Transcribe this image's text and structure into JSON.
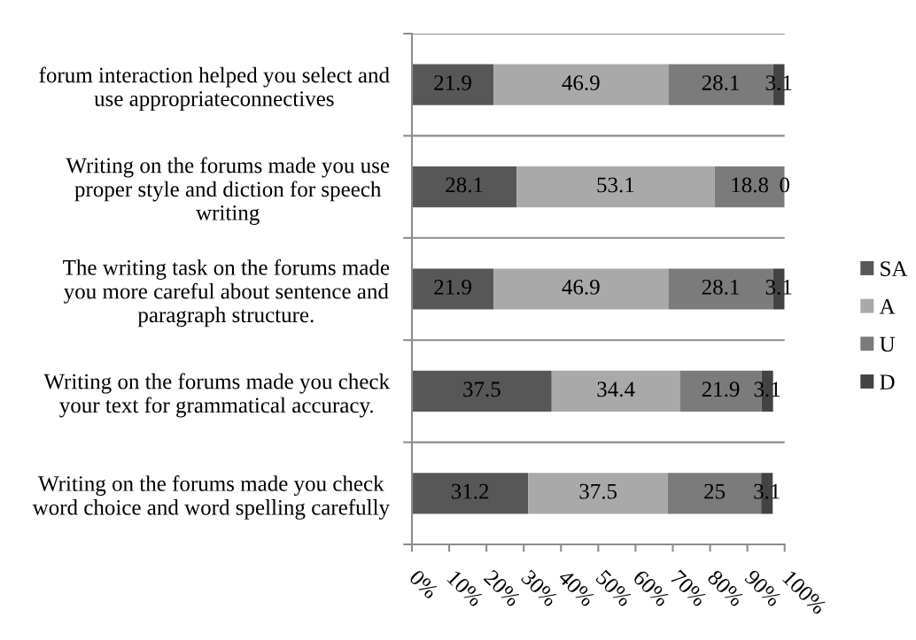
{
  "chart_data": {
    "type": "bar",
    "orientation": "horizontal",
    "stacked": true,
    "categories": [
      "forum interaction helped you select and\nuse appropriateconnectives",
      "Writing on the forums made you use\nproper style and diction for speech\nwriting",
      "The writing task on the forums made\nyou more careful about sentence and\nparagraph structure.",
      "Writing on the forums made you check\nyour text for grammatical accuracy.",
      "Writing on the forums made you check\nword choice and word spelling carefully"
    ],
    "series": [
      {
        "name": "SA",
        "color": "#575757",
        "values": [
          21.9,
          28.1,
          21.9,
          37.5,
          31.2
        ]
      },
      {
        "name": "A",
        "color": "#a9a9a9",
        "values": [
          46.9,
          53.1,
          46.9,
          34.4,
          37.5
        ]
      },
      {
        "name": "U",
        "color": "#7b7b7b",
        "values": [
          28.1,
          18.8,
          28.1,
          21.9,
          25
        ]
      },
      {
        "name": "D",
        "color": "#434343",
        "values": [
          3.1,
          0,
          3.1,
          3.1,
          3.1
        ]
      }
    ],
    "xlim": [
      0,
      100
    ],
    "xticks": [
      {
        "value": 0,
        "label": "0%"
      },
      {
        "value": 10,
        "label": "10%"
      },
      {
        "value": 20,
        "label": "20%"
      },
      {
        "value": 30,
        "label": "30%"
      },
      {
        "value": 40,
        "label": "40%"
      },
      {
        "value": 50,
        "label": "50%"
      },
      {
        "value": 60,
        "label": "60%"
      },
      {
        "value": 70,
        "label": "70%"
      },
      {
        "value": 80,
        "label": "80%"
      },
      {
        "value": 90,
        "label": "90%"
      },
      {
        "value": 100,
        "label": "100%"
      }
    ],
    "data_labels": true,
    "grid": "y",
    "legend": "right"
  }
}
